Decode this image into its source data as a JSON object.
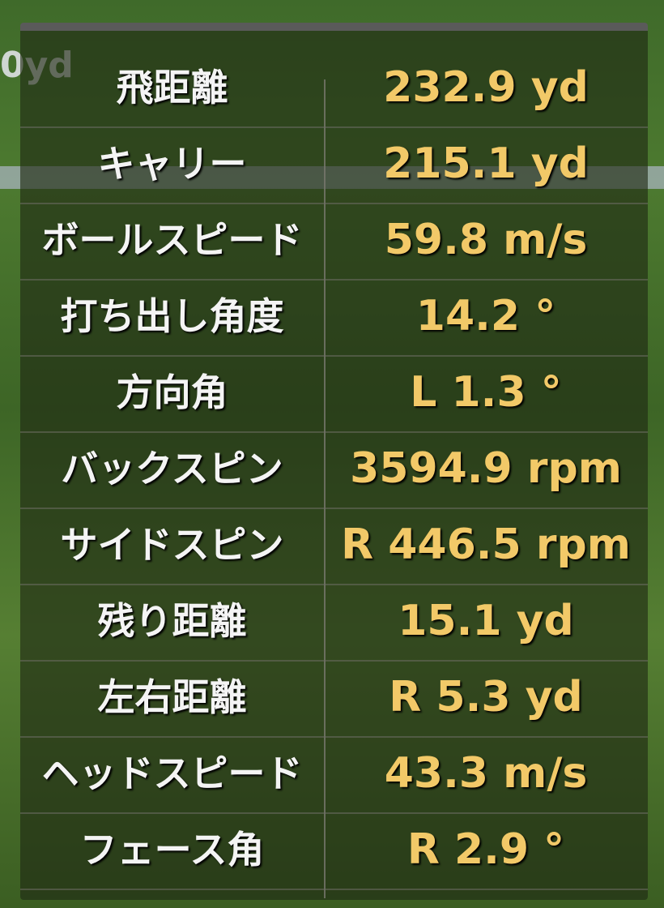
{
  "background_text": "0yd",
  "rows": [
    {
      "label": "飛距離",
      "value": "232.9 yd"
    },
    {
      "label": "キャリー",
      "value": "215.1 yd"
    },
    {
      "label": "ボールスピード",
      "value": "59.8 m/s"
    },
    {
      "label": "打ち出し角度",
      "value": "14.2 °"
    },
    {
      "label": "方向角",
      "value": "L 1.3 °"
    },
    {
      "label": "バックスピン",
      "value": "3594.9 rpm"
    },
    {
      "label": "サイドスピン",
      "value": "R 446.5 rpm"
    },
    {
      "label": "残り距離",
      "value": "15.1 yd"
    },
    {
      "label": "左右距離",
      "value": "R 5.3 yd"
    },
    {
      "label": "ヘッドスピード",
      "value": "43.3 m/s"
    },
    {
      "label": "フェース角",
      "value": "R 2.9 °"
    }
  ]
}
